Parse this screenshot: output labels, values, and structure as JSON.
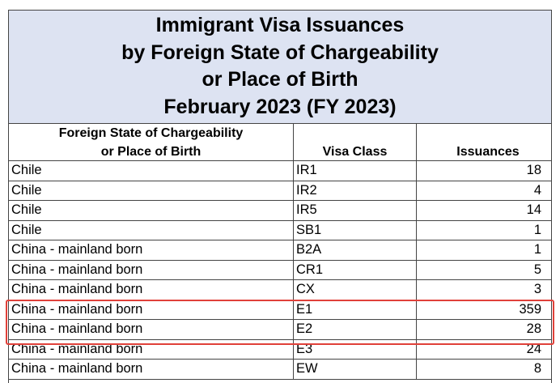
{
  "title": {
    "lines": [
      "Immigrant Visa Issuances",
      "by Foreign State of Chargeability",
      "or Place of Birth",
      "February 2023 (FY 2023)"
    ]
  },
  "table": {
    "headers": {
      "country_line1": "Foreign State of Chargeability",
      "country_line2": "or Place of Birth",
      "visa_class": "Visa Class",
      "issuances": "Issuances"
    },
    "rows": [
      {
        "country": "Chile",
        "visa_class": "IR1",
        "issuances": "18"
      },
      {
        "country": "Chile",
        "visa_class": "IR2",
        "issuances": "4"
      },
      {
        "country": "Chile",
        "visa_class": "IR5",
        "issuances": "14"
      },
      {
        "country": "Chile",
        "visa_class": "SB1",
        "issuances": "1"
      },
      {
        "country": "China - mainland born",
        "visa_class": "B2A",
        "issuances": "1"
      },
      {
        "country": "China - mainland born",
        "visa_class": "CR1",
        "issuances": "5"
      },
      {
        "country": "China - mainland born",
        "visa_class": "CX",
        "issuances": "3"
      },
      {
        "country": "China - mainland born",
        "visa_class": "E1",
        "issuances": "359"
      },
      {
        "country": "China - mainland born",
        "visa_class": "E2",
        "issuances": "28"
      },
      {
        "country": "China - mainland born",
        "visa_class": "E3",
        "issuances": "24"
      },
      {
        "country": "China - mainland born",
        "visa_class": "EW",
        "issuances": "8"
      }
    ]
  },
  "highlight": {
    "color": "#e0413a"
  }
}
